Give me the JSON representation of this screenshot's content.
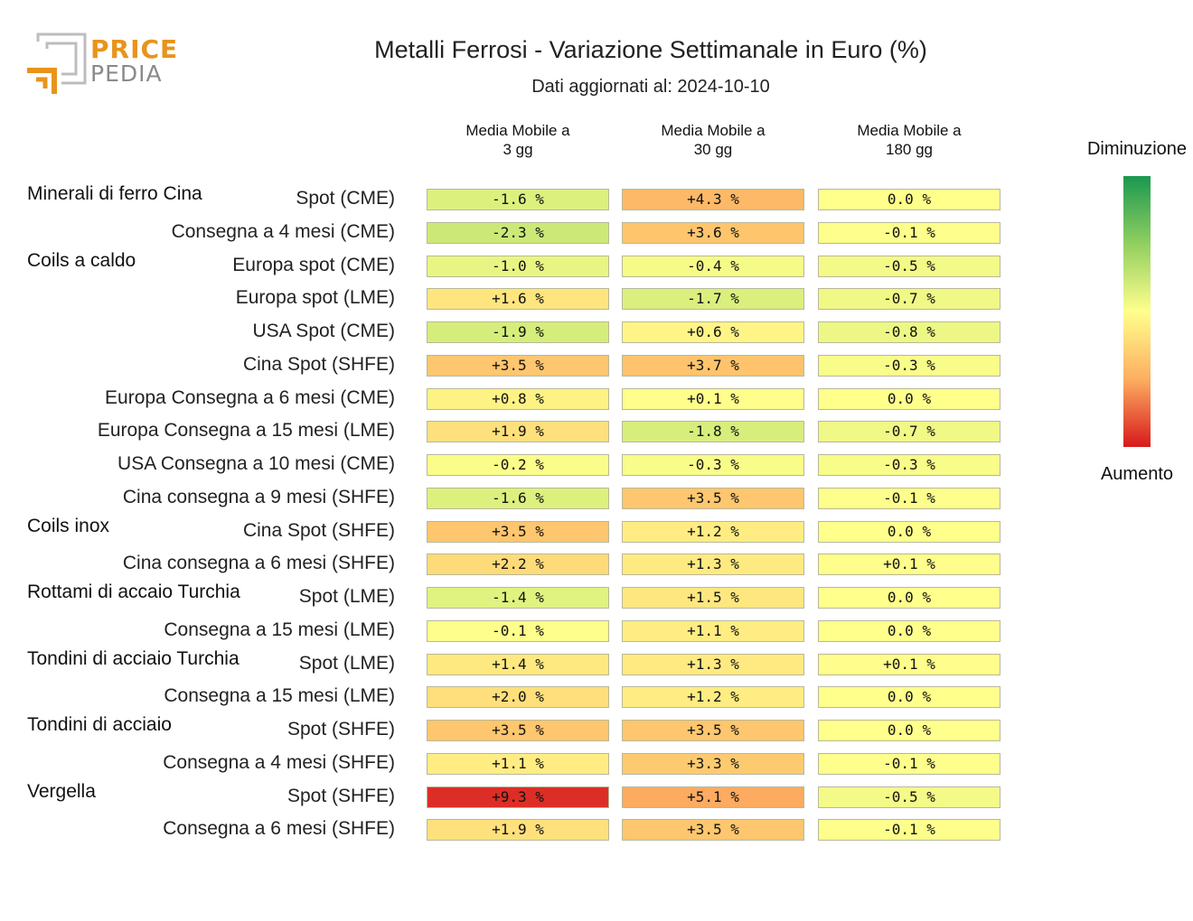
{
  "logo": {
    "line1": "PRICE",
    "line2": "PEDIA"
  },
  "title": "Metalli Ferrosi - Variazione Settimanale in Euro (%)",
  "subtitle": "Dati aggiornati al: 2024-10-10",
  "legend": {
    "top": "Diminuzione",
    "bottom": "Aumento",
    "colors": [
      "#1a9850",
      "#91cf60",
      "#ffff8c",
      "#fdae61",
      "#d7191c"
    ]
  },
  "chart_data": {
    "type": "table",
    "columns": [
      "Media Mobile a\n3 gg",
      "Media Mobile a\n30 gg",
      "Media Mobile a\n180 gg"
    ],
    "groups": [
      {
        "name": "Minerali di ferro Cina",
        "rows": [
          {
            "label": "Spot (CME)",
            "values": [
              "-1.6 %",
              "+4.3 %",
              "0.0 %"
            ]
          },
          {
            "label": "Consegna a 4 mesi (CME)",
            "values": [
              "-2.3 %",
              "+3.6 %",
              "-0.1 %"
            ]
          }
        ]
      },
      {
        "name": "Coils a caldo",
        "rows": [
          {
            "label": "Europa spot (CME)",
            "values": [
              "-1.0 %",
              "-0.4 %",
              "-0.5 %"
            ]
          },
          {
            "label": "Europa spot (LME)",
            "values": [
              "+1.6 %",
              "-1.7 %",
              "-0.7 %"
            ]
          },
          {
            "label": "USA Spot (CME)",
            "values": [
              "-1.9 %",
              "+0.6 %",
              "-0.8 %"
            ]
          },
          {
            "label": "Cina Spot (SHFE)",
            "values": [
              "+3.5 %",
              "+3.7 %",
              "-0.3 %"
            ]
          },
          {
            "label": "Europa Consegna a 6 mesi (CME)",
            "values": [
              "+0.8 %",
              "+0.1 %",
              "0.0 %"
            ]
          },
          {
            "label": "Europa Consegna a 15 mesi (LME)",
            "values": [
              "+1.9 %",
              "-1.8 %",
              "-0.7 %"
            ]
          },
          {
            "label": "USA Consegna a 10 mesi (CME)",
            "values": [
              "-0.2 %",
              "-0.3 %",
              "-0.3 %"
            ]
          },
          {
            "label": "Cina consegna a 9 mesi (SHFE)",
            "values": [
              "-1.6 %",
              "+3.5 %",
              "-0.1 %"
            ]
          }
        ]
      },
      {
        "name": "Coils inox",
        "rows": [
          {
            "label": "Cina Spot (SHFE)",
            "values": [
              "+3.5 %",
              "+1.2 %",
              "0.0 %"
            ]
          },
          {
            "label": "Cina consegna a 6 mesi (SHFE)",
            "values": [
              "+2.2 %",
              "+1.3 %",
              "+0.1 %"
            ]
          }
        ]
      },
      {
        "name": "Rottami di accaio Turchia",
        "rows": [
          {
            "label": "Spot (LME)",
            "values": [
              "-1.4 %",
              "+1.5 %",
              "0.0 %"
            ]
          },
          {
            "label": "Consegna a 15 mesi (LME)",
            "values": [
              "-0.1 %",
              "+1.1 %",
              "0.0 %"
            ]
          }
        ]
      },
      {
        "name": "Tondini di acciaio Turchia",
        "rows": [
          {
            "label": "Spot (LME)",
            "values": [
              "+1.4 %",
              "+1.3 %",
              "+0.1 %"
            ]
          },
          {
            "label": "Consegna a 15 mesi (LME)",
            "values": [
              "+2.0 %",
              "+1.2 %",
              "0.0 %"
            ]
          }
        ]
      },
      {
        "name": "Tondini di acciaio",
        "rows": [
          {
            "label": "Spot (SHFE)",
            "values": [
              "+3.5 %",
              "+3.5 %",
              "0.0 %"
            ]
          },
          {
            "label": "Consegna a 4 mesi (SHFE)",
            "values": [
              "+1.1 %",
              "+3.3 %",
              "-0.1 %"
            ]
          }
        ]
      },
      {
        "name": "Vergella",
        "rows": [
          {
            "label": "Spot (SHFE)",
            "values": [
              "+9.3 %",
              "+5.1 %",
              "-0.5 %"
            ]
          },
          {
            "label": "Consegna a 6 mesi (SHFE)",
            "values": [
              "+1.9 %",
              "+3.5 %",
              "-0.1 %"
            ]
          }
        ]
      }
    ]
  }
}
